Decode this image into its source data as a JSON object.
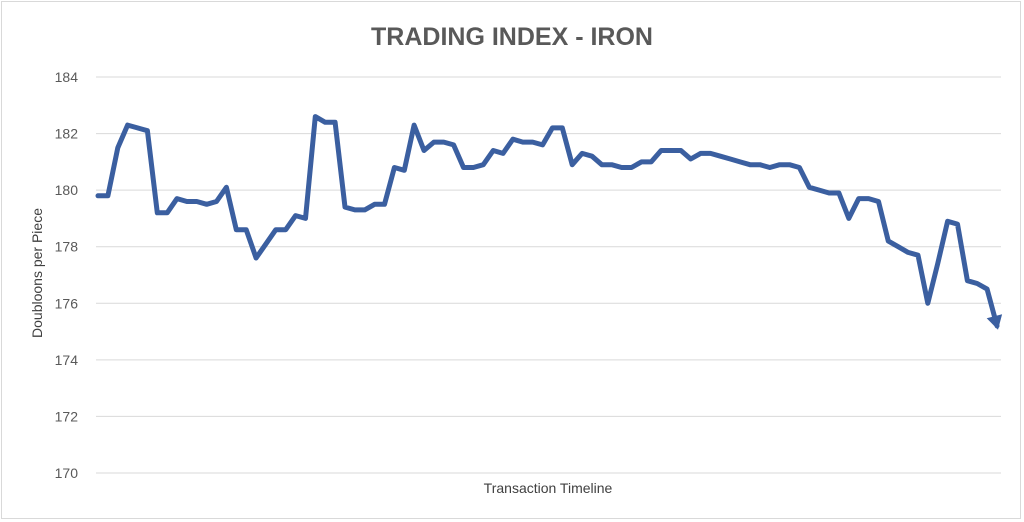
{
  "chart_data": {
    "type": "line",
    "title": "TRADING INDEX - IRON",
    "xlabel": "Transaction Timeline",
    "ylabel": "Doubloons per Piece",
    "ylim": [
      170,
      184
    ],
    "yticks": [
      170,
      172,
      174,
      176,
      178,
      180,
      182,
      184
    ],
    "grid": true,
    "legend": "none",
    "line_color": "#3B5FA0",
    "end_marker": "arrow",
    "series": [
      {
        "values": [
          179.8,
          179.8,
          181.5,
          182.3,
          182.2,
          182.1,
          179.2,
          179.2,
          179.7,
          179.6,
          179.6,
          179.5,
          179.6,
          180.1,
          178.6,
          178.6,
          177.6,
          178.1,
          178.6,
          178.6,
          179.1,
          179.0,
          182.6,
          182.4,
          182.4,
          179.4,
          179.3,
          179.3,
          179.5,
          179.5,
          180.8,
          180.7,
          182.3,
          181.4,
          181.7,
          181.7,
          181.6,
          180.8,
          180.8,
          180.9,
          181.4,
          181.3,
          181.8,
          181.7,
          181.7,
          181.6,
          182.2,
          182.2,
          180.9,
          181.3,
          181.2,
          180.9,
          180.9,
          180.8,
          180.8,
          181.0,
          181.0,
          181.4,
          181.4,
          181.4,
          181.1,
          181.3,
          181.3,
          181.2,
          181.1,
          181.0,
          180.9,
          180.9,
          180.8,
          180.9,
          180.9,
          180.8,
          180.1,
          180.0,
          179.9,
          179.9,
          179.0,
          179.7,
          179.7,
          179.6,
          178.2,
          178.0,
          177.8,
          177.7,
          176.0,
          177.4,
          178.9,
          178.8,
          176.8,
          176.7,
          176.5,
          175.2
        ]
      }
    ]
  }
}
